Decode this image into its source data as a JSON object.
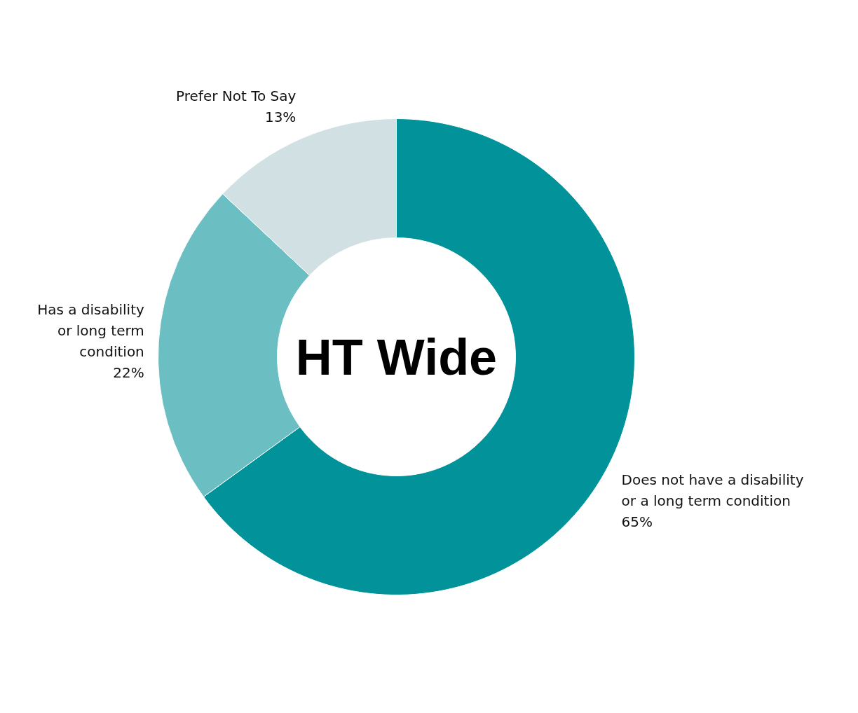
{
  "chart_data": {
    "type": "donut",
    "title": "HT Wide",
    "categories": [
      "Does not have a disability\nor a long term condition",
      "Has a disability\nor long term\ncondition",
      "Prefer Not To Say"
    ],
    "values": [
      65,
      22,
      13
    ],
    "colors": [
      "#02939a",
      "#6bbec2",
      "#d1e0e2"
    ],
    "value_labels": [
      "65%",
      "22%",
      "13%"
    ],
    "legend": false
  }
}
